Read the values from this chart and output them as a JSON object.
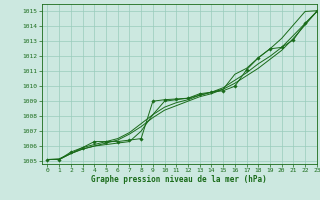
{
  "xlabel": "Graphe pression niveau de la mer (hPa)",
  "ylim": [
    1004.8,
    1015.5
  ],
  "xlim": [
    -0.5,
    23
  ],
  "yticks": [
    1005,
    1006,
    1007,
    1008,
    1009,
    1010,
    1011,
    1012,
    1013,
    1014,
    1015
  ],
  "xticks": [
    0,
    1,
    2,
    3,
    4,
    5,
    6,
    7,
    8,
    9,
    10,
    11,
    12,
    13,
    14,
    15,
    16,
    17,
    18,
    19,
    20,
    21,
    22,
    23
  ],
  "bg_color": "#cce8e0",
  "grid_color": "#99ccbb",
  "line_color": "#1a6b1a",
  "series_smooth1": [
    1005.1,
    1005.1,
    1005.5,
    1005.8,
    1006.0,
    1006.2,
    1006.4,
    1006.8,
    1007.3,
    1007.9,
    1008.4,
    1008.7,
    1009.0,
    1009.3,
    1009.5,
    1009.8,
    1010.2,
    1010.7,
    1011.2,
    1011.8,
    1012.4,
    1013.2,
    1014.1,
    1015.0
  ],
  "series_smooth2": [
    1005.1,
    1005.1,
    1005.5,
    1005.9,
    1006.1,
    1006.3,
    1006.5,
    1006.9,
    1007.5,
    1008.1,
    1008.6,
    1008.9,
    1009.1,
    1009.4,
    1009.6,
    1009.9,
    1010.4,
    1010.9,
    1011.5,
    1012.0,
    1012.6,
    1013.4,
    1014.2,
    1015.0
  ],
  "series_upper": [
    1005.1,
    1005.15,
    1005.5,
    1005.8,
    1006.0,
    1006.1,
    1006.2,
    1006.3,
    1007.0,
    1008.1,
    1009.0,
    1009.1,
    1009.2,
    1009.4,
    1009.6,
    1009.8,
    1010.8,
    1011.2,
    1011.9,
    1012.5,
    1013.2,
    1014.1,
    1015.0,
    1015.05
  ],
  "series_markers": [
    1005.1,
    1005.1,
    1005.6,
    1005.9,
    1006.3,
    1006.3,
    1006.3,
    1006.4,
    1006.5,
    1009.0,
    1009.1,
    1009.15,
    1009.2,
    1009.5,
    1009.6,
    1009.7,
    1010.0,
    1011.1,
    1011.9,
    1012.5,
    1012.6,
    1013.1,
    1014.2,
    1015.0
  ]
}
